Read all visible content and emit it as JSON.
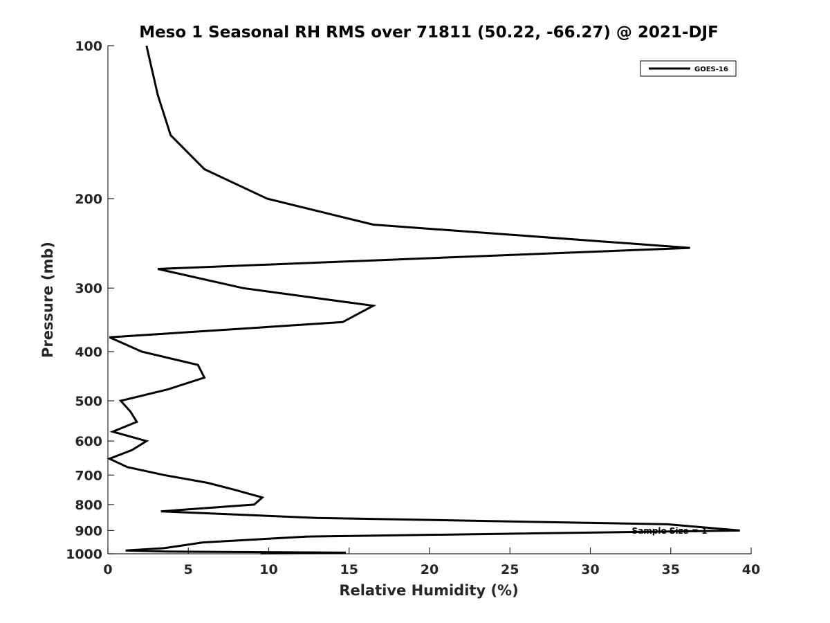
{
  "chart_data": {
    "type": "line",
    "title": "Meso 1 Seasonal RH RMS over 71811 (50.22, -66.27) @ 2021-DJF",
    "xlabel": "Relative Humidity (%)",
    "ylabel": "Pressure (mb)",
    "xlim": [
      0,
      40
    ],
    "ylim": [
      100,
      1000
    ],
    "y_scale": "log",
    "y_reversed": true,
    "x_ticks": [
      0,
      5,
      10,
      15,
      20,
      25,
      30,
      35,
      40
    ],
    "y_ticks": [
      100,
      200,
      300,
      400,
      500,
      600,
      700,
      800,
      900,
      1000
    ],
    "grid": false,
    "legend_position": "top-right",
    "line_color": "#000000",
    "series": [
      {
        "name": "GOES-16",
        "x": [
          2.4,
          3.1,
          3.9,
          6.0,
          9.9,
          16.5,
          36.2,
          3.1,
          8.4,
          16.5,
          14.6,
          0.1,
          2.1,
          5.6,
          6.0,
          3.7,
          0.8,
          1.4,
          1.8,
          0.3,
          2.4,
          1.5,
          0.1,
          1.2,
          3.5,
          6.2,
          8.0,
          9.6,
          9.1,
          3.3,
          13.0,
          34.8,
          39.3,
          12.4,
          5.9,
          3.5,
          1.1,
          3.6,
          14.8,
          9.5
        ],
        "y": [
          100,
          125,
          150,
          175,
          200,
          225,
          250,
          275,
          300,
          325,
          350,
          375,
          400,
          425,
          450,
          475,
          500,
          525,
          550,
          575,
          600,
          625,
          650,
          675,
          700,
          725,
          750,
          775,
          800,
          825,
          850,
          875,
          900,
          925,
          950,
          975,
          985,
          990,
          995,
          998
        ]
      }
    ],
    "annotation": "Sample Size = 1"
  }
}
